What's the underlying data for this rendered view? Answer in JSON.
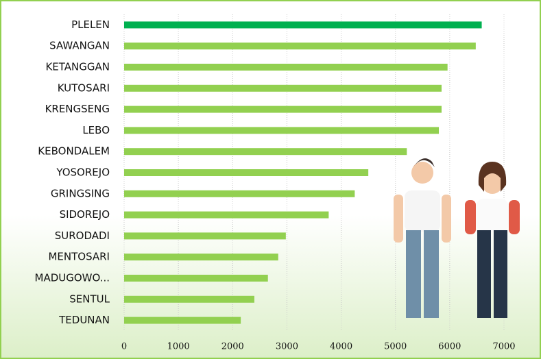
{
  "chart_data": {
    "type": "barh",
    "categories": [
      "PLELEN",
      "SAWANGAN",
      "KETANGGAN",
      "KUTOSARI",
      "KRENGSENG",
      "LEBO",
      "KEBONDALEM",
      "YOSOREJO",
      "GRINGSING",
      "SIDOREJO",
      "SURODADI",
      "MENTOSARI",
      "MADUGOWO...",
      "SENTUL",
      "TEDUNAN"
    ],
    "values": [
      6590,
      6480,
      5960,
      5850,
      5850,
      5800,
      5210,
      4500,
      4250,
      3770,
      2980,
      2840,
      2650,
      2400,
      2150
    ],
    "colors": [
      "#00b050",
      "#92d050",
      "#92d050",
      "#92d050",
      "#92d050",
      "#92d050",
      "#92d050",
      "#92d050",
      "#92d050",
      "#92d050",
      "#92d050",
      "#92d050",
      "#92d050",
      "#92d050",
      "#92d050"
    ],
    "xlim": [
      0,
      7000
    ],
    "xticks": [
      0,
      1000,
      2000,
      3000,
      4000,
      5000,
      6000,
      7000
    ],
    "grid": true
  }
}
